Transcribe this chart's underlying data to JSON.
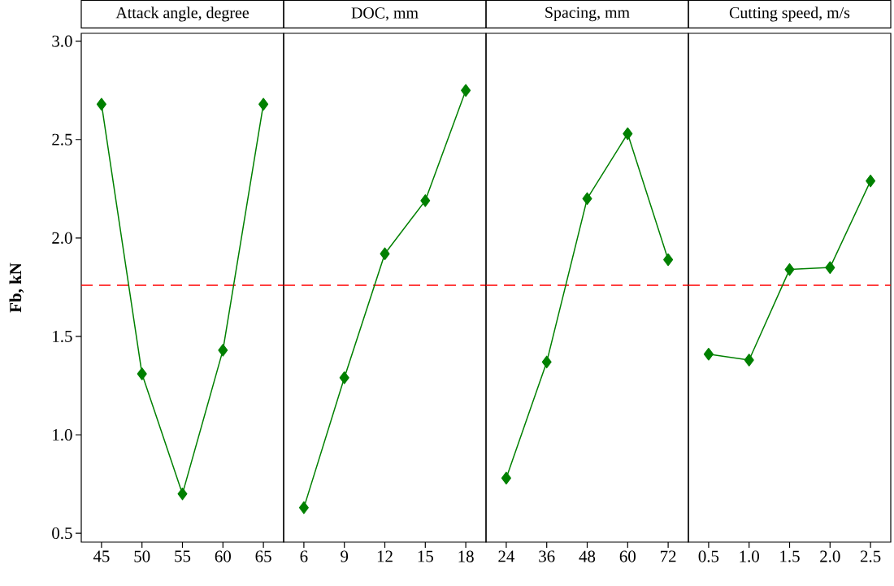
{
  "chart_data": [
    {
      "type": "line",
      "title": "Attack angle, degree",
      "ylabel": "Fb, kN",
      "categories": [
        "45",
        "50",
        "55",
        "60",
        "65"
      ],
      "values": [
        2.68,
        1.31,
        0.7,
        1.43,
        2.68
      ],
      "color": "#008000",
      "marker": "diamond",
      "ylim": [
        0.455,
        3.04
      ],
      "yticks": [
        {
          "value": 0.5,
          "label": "0.5"
        },
        {
          "value": 1.0,
          "label": "1.0"
        },
        {
          "value": 1.5,
          "label": "1.5"
        },
        {
          "value": 2.0,
          "label": "2.0"
        },
        {
          "value": 2.5,
          "label": "2.5"
        },
        {
          "value": 3.0,
          "label": "3.0"
        }
      ],
      "ref_lines": [
        {
          "axis": "y",
          "value": 1.76,
          "color": "#ff0000",
          "line_style": "dashed"
        }
      ]
    },
    {
      "type": "line",
      "title": "DOC, mm",
      "categories": [
        "6",
        "9",
        "12",
        "15",
        "18"
      ],
      "values": [
        0.63,
        1.29,
        1.92,
        2.19,
        2.75
      ],
      "color": "#008000",
      "marker": "diamond",
      "ylim": [
        0.455,
        3.04
      ],
      "tick_labels": "x",
      "ref_lines": [
        {
          "axis": "y",
          "value": 1.76,
          "color": "#ff0000",
          "line_style": "dashed"
        }
      ]
    },
    {
      "type": "line",
      "title": "Spacing, mm",
      "categories": [
        "24",
        "36",
        "48",
        "60",
        "72"
      ],
      "values": [
        0.78,
        1.37,
        2.2,
        2.53,
        1.89
      ],
      "color": "#008000",
      "marker": "diamond",
      "ylim": [
        0.455,
        3.04
      ],
      "tick_labels": "x",
      "ref_lines": [
        {
          "axis": "y",
          "value": 1.76,
          "color": "#ff0000",
          "line_style": "dashed"
        }
      ]
    },
    {
      "type": "line",
      "title": "Cutting speed, m/s",
      "categories": [
        "0.5",
        "1.0",
        "1.5",
        "2.0",
        "2.5"
      ],
      "values": [
        1.41,
        1.38,
        1.84,
        1.85,
        2.29
      ],
      "color": "#008000",
      "marker": "diamond",
      "ylim": [
        0.455,
        3.04
      ],
      "tick_labels": "x",
      "ref_lines": [
        {
          "axis": "y",
          "value": 1.76,
          "color": "#ff0000",
          "line_style": "dashed"
        }
      ]
    }
  ]
}
